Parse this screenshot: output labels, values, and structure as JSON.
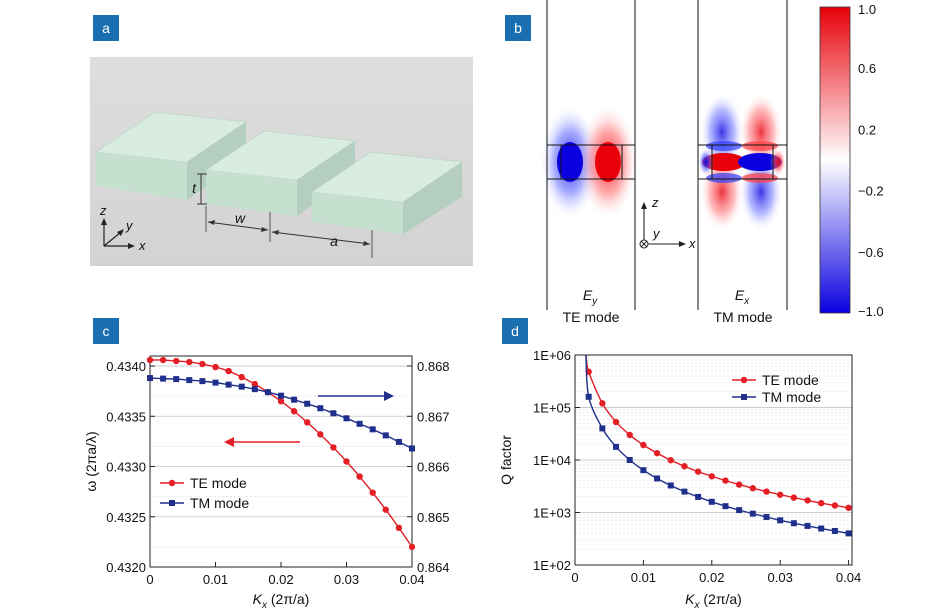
{
  "panels": {
    "a": {
      "label": "a",
      "t_label": "t",
      "w_label": "w",
      "a_label": "a",
      "axis_z": "z",
      "axis_y": "y",
      "axis_x": "x"
    },
    "b": {
      "label": "b",
      "te_field": "E",
      "te_field_sub": "y",
      "te_mode": "TE mode",
      "tm_field": "E",
      "tm_field_sub": "x",
      "tm_mode": "TM mode",
      "axis_z": "z",
      "axis_y": "y",
      "axis_x": "x",
      "colorbar_ticks": [
        "1.0",
        "0.6",
        "0.2",
        "−0.2",
        "−0.6",
        "−1.0"
      ],
      "colorbar_colors": {
        "max": "#e8000a",
        "mid": "#ffffff",
        "min": "#0a00e0"
      }
    },
    "c": {
      "label": "c"
    },
    "d": {
      "label": "d"
    }
  },
  "colors": {
    "panel_label_bg": "#1a6fb0",
    "te": "#e31e24",
    "tm": "#1f2f8c"
  },
  "chart_data": [
    {
      "type": "line",
      "panel": "c",
      "xlabel_main": "K",
      "xlabel_sub": "x",
      "xlabel_unit": " (2π/a)",
      "ylabel": "ω (2πa/λ)",
      "xlim": [
        0,
        0.04
      ],
      "ylim_left": [
        0.432,
        0.4341
      ],
      "ylim_right": [
        0.864,
        0.8682
      ],
      "x_ticks": [
        "0",
        "0.01",
        "0.02",
        "0.03",
        "0.04"
      ],
      "y_ticks_left": [
        "0.4340",
        "0.4335",
        "0.4330",
        "0.4325",
        "0.4320"
      ],
      "y_ticks_right": [
        "0.868",
        "0.867",
        "0.866",
        "0.865",
        "0.864"
      ],
      "legend_position": "bottom-left",
      "series": [
        {
          "name": "TE mode",
          "axis": "left",
          "marker": "circle",
          "x": [
            0,
            0.002,
            0.004,
            0.006,
            0.008,
            0.01,
            0.012,
            0.014,
            0.016,
            0.018,
            0.02,
            0.022,
            0.024,
            0.026,
            0.028,
            0.03,
            0.032,
            0.034,
            0.036,
            0.038,
            0.04
          ],
          "y": [
            0.43406,
            0.43406,
            0.43405,
            0.43404,
            0.43402,
            0.43399,
            0.43395,
            0.43389,
            0.43382,
            0.43374,
            0.43365,
            0.43355,
            0.43344,
            0.43332,
            0.43319,
            0.43305,
            0.4329,
            0.43274,
            0.43257,
            0.43239,
            0.4322
          ]
        },
        {
          "name": "TM mode",
          "axis": "right",
          "marker": "square",
          "x": [
            0,
            0.002,
            0.004,
            0.006,
            0.008,
            0.01,
            0.012,
            0.014,
            0.016,
            0.018,
            0.02,
            0.022,
            0.024,
            0.026,
            0.028,
            0.03,
            0.032,
            0.034,
            0.036,
            0.038,
            0.04
          ],
          "y": [
            0.86776,
            0.86775,
            0.86774,
            0.86772,
            0.8677,
            0.86767,
            0.86763,
            0.86759,
            0.86754,
            0.86748,
            0.86741,
            0.86733,
            0.86725,
            0.86716,
            0.86706,
            0.86696,
            0.86685,
            0.86674,
            0.86662,
            0.86649,
            0.86636
          ]
        }
      ]
    },
    {
      "type": "line",
      "panel": "d",
      "xlabel_main": "K",
      "xlabel_sub": "x",
      "xlabel_unit": " (2π/a)",
      "ylabel": "Q factor",
      "yscale": "log",
      "xlim": [
        0,
        0.0405
      ],
      "ylim": [
        100,
        1000000
      ],
      "x_ticks": [
        "0",
        "0.01",
        "0.02",
        "0.03",
        "0.04"
      ],
      "y_ticks": [
        "1E+06",
        "1E+05",
        "1E+04",
        "1E+03",
        "1E+02"
      ],
      "legend_position": "top-right",
      "series": [
        {
          "name": "TE mode",
          "marker": "circle",
          "x": [
            0.002,
            0.004,
            0.006,
            0.008,
            0.01,
            0.012,
            0.014,
            0.016,
            0.018,
            0.02,
            0.022,
            0.024,
            0.026,
            0.028,
            0.03,
            0.032,
            0.034,
            0.036,
            0.038,
            0.04
          ],
          "y": [
            480000,
            120000,
            53000,
            30000,
            19300,
            13500,
            9900,
            7600,
            6000,
            4900,
            4050,
            3400,
            2900,
            2500,
            2180,
            1920,
            1700,
            1510,
            1360,
            1230
          ]
        },
        {
          "name": "TM mode",
          "marker": "square",
          "x": [
            0.002,
            0.004,
            0.006,
            0.008,
            0.01,
            0.012,
            0.014,
            0.016,
            0.018,
            0.02,
            0.022,
            0.024,
            0.026,
            0.028,
            0.03,
            0.032,
            0.034,
            0.036,
            0.038,
            0.04
          ],
          "y": [
            160000,
            40000,
            17800,
            10000,
            6400,
            4450,
            3270,
            2500,
            1980,
            1600,
            1320,
            1110,
            950,
            820,
            710,
            625,
            555,
            495,
            445,
            400
          ]
        }
      ]
    }
  ]
}
